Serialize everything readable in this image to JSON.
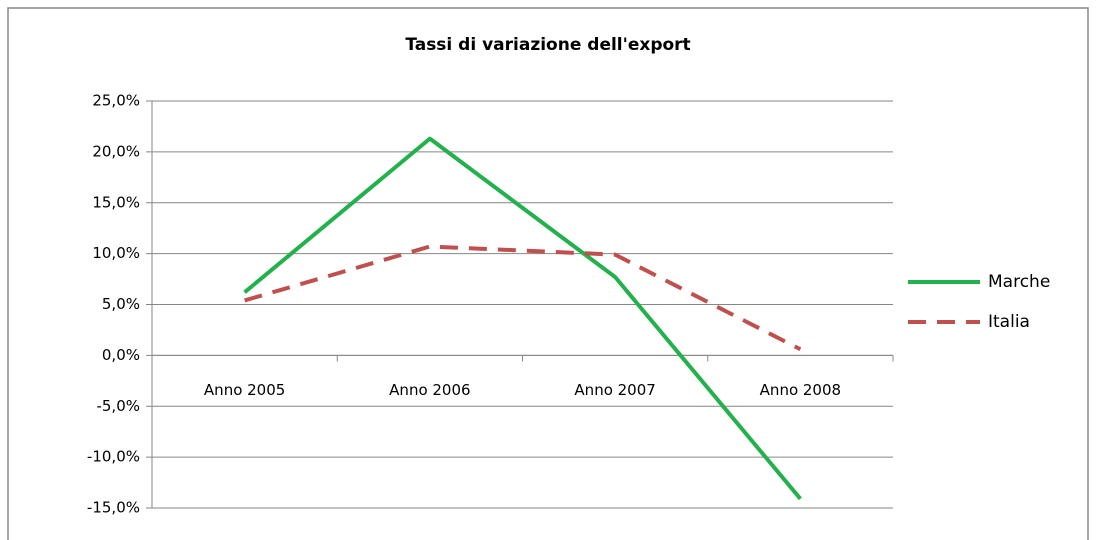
{
  "chart_data": {
    "type": "line",
    "title": "Tassi di variazione dell'export",
    "categories": [
      "Anno 2005",
      "Anno 2006",
      "Anno 2007",
      "Anno 2008"
    ],
    "series": [
      {
        "name": "Marche",
        "color": "#22b14c",
        "dash": false,
        "values": [
          6.2,
          21.3,
          7.7,
          -14.1
        ]
      },
      {
        "name": "Italia",
        "color": "#c0504d",
        "dash": true,
        "values": [
          5.4,
          10.7,
          9.9,
          0.6
        ]
      }
    ],
    "ylim": [
      -15,
      25
    ],
    "yticks": [
      {
        "value": -15,
        "label": "-15,0%"
      },
      {
        "value": -10,
        "label": "-10,0%"
      },
      {
        "value": -5,
        "label": "-5,0%"
      },
      {
        "value": 0,
        "label": "0,0%"
      },
      {
        "value": 5,
        "label": "5,0%"
      },
      {
        "value": 10,
        "label": "10,0%"
      },
      {
        "value": 15,
        "label": "15,0%"
      },
      {
        "value": 20,
        "label": "20,0%"
      },
      {
        "value": 25,
        "label": "25,0%"
      }
    ],
    "grid": true,
    "legend": "right"
  }
}
